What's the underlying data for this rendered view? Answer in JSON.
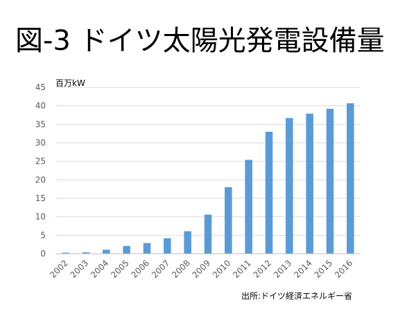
{
  "slide": {
    "title": "図-3 ドイツ太陽光発電設備量",
    "source": "出所:ドイツ経済エネルギー省"
  },
  "colors": {
    "bar": "#5b9bd5",
    "grid": "#d9d9d9",
    "axis": "#bfbfbf"
  },
  "chart_data": {
    "type": "bar",
    "title": "",
    "xlabel": "",
    "ylabel": "百万kW",
    "categories": [
      "2002",
      "2003",
      "2004",
      "2005",
      "2006",
      "2007",
      "2008",
      "2009",
      "2010",
      "2011",
      "2012",
      "2013",
      "2014",
      "2015",
      "2016"
    ],
    "values": [
      0.3,
      0.4,
      1.1,
      2.1,
      2.9,
      4.2,
      6.1,
      10.6,
      18.0,
      25.4,
      33.0,
      36.7,
      37.9,
      39.2,
      40.7
    ],
    "ylim": [
      0,
      45
    ],
    "yticks": [
      0,
      5,
      10,
      15,
      20,
      25,
      30,
      35,
      40,
      45
    ],
    "grid": true
  }
}
